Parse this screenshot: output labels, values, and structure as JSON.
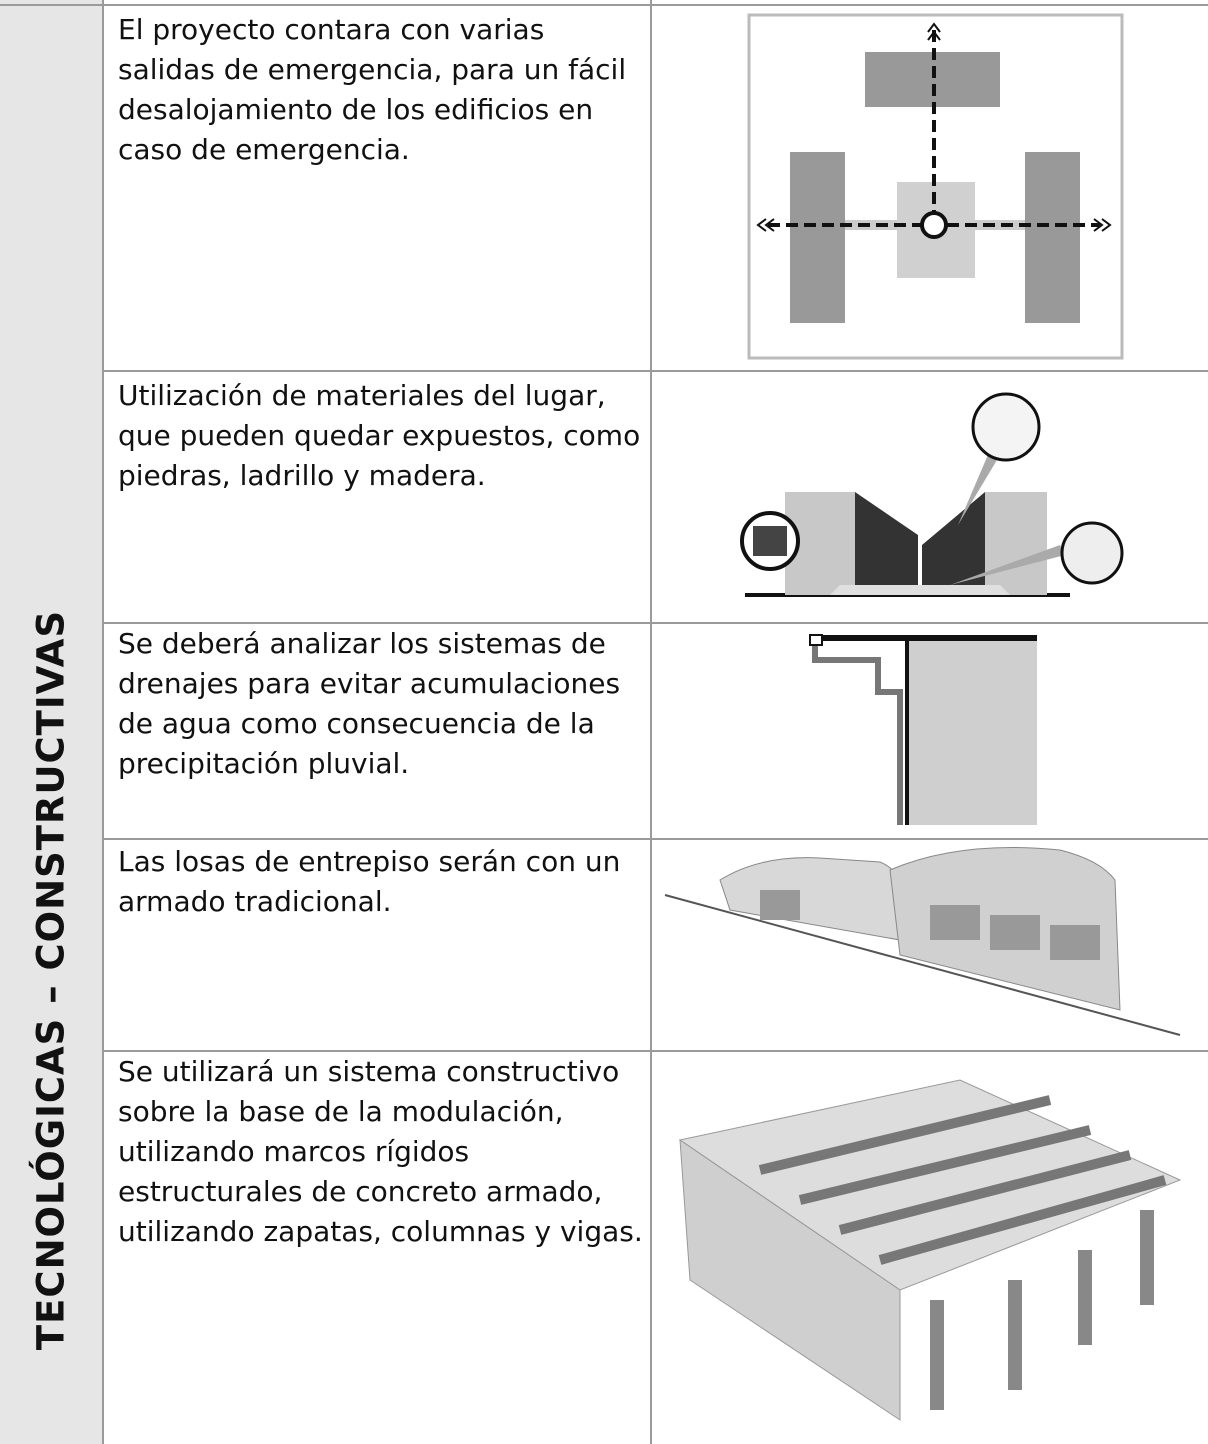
{
  "table": {
    "section_label": "TECNOLÓGICAS – CONSTRUCTIVAS",
    "rows": [
      {
        "text": "El proyecto contara con varias salidas de emergencia, para un fácil desalojamiento de los edificios en caso de emergencia."
      },
      {
        "text": "Utilización de materiales del lugar, que pueden quedar expuestos, como piedras, ladrillo y madera."
      },
      {
        "text": "Se deberá analizar los sistemas de drenajes para evitar acumulaciones de agua como consecuencia de la precipitación pluvial."
      },
      {
        "text": "Las losas de entrepiso serán con un armado tradicional."
      },
      {
        "text": "Se utilizará un sistema constructivo sobre la base de la modulación, utilizando marcos rígidos estructurales de concreto armado, utilizando zapatas, columnas y vigas."
      }
    ]
  }
}
